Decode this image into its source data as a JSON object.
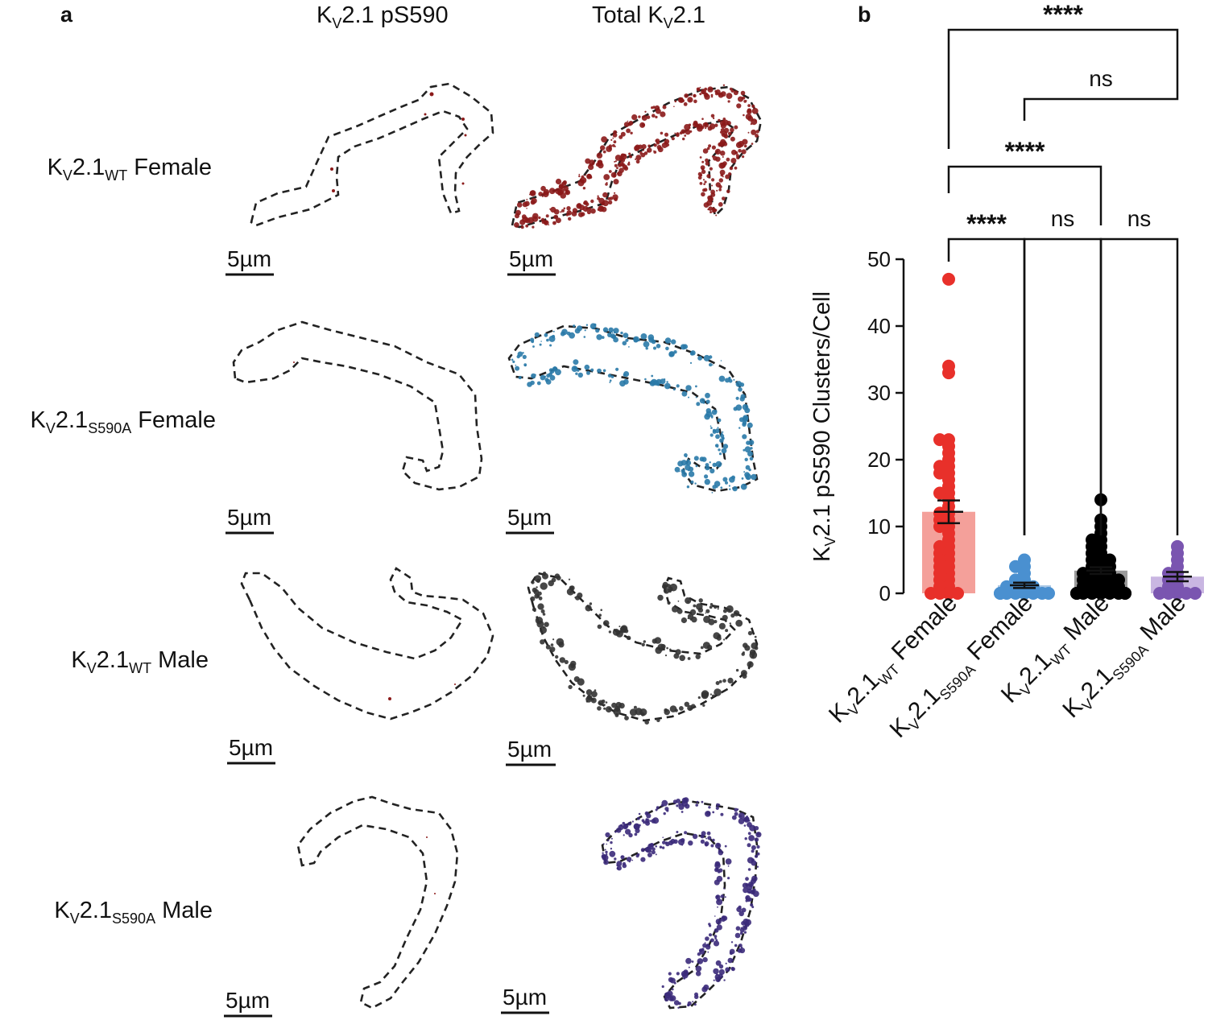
{
  "panel_a": {
    "letter": "a",
    "col_headers": [
      {
        "k": "K",
        "sub": "V",
        "rest": "2.1 pS590"
      },
      {
        "k": "Total K",
        "sub": "V",
        "rest": "2.1"
      }
    ],
    "rows": [
      {
        "k": "K",
        "v": "V",
        "base": "2.1",
        "sub": "WT",
        "sex": " Female",
        "color": "#8b1a1a"
      },
      {
        "k": "K",
        "v": "V",
        "base": "2.1",
        "sub": "S590A",
        "sex": " Female",
        "color": "#2a7aa8"
      },
      {
        "k": "K",
        "v": "V",
        "base": "2.1",
        "sub": "WT",
        "sex": " Male",
        "color": "#333333"
      },
      {
        "k": "K",
        "v": "V",
        "base": "2.1",
        "sub": "S590A",
        "sex": " Male",
        "color": "#3b2a7a"
      }
    ],
    "scale_bar_label": "5µm"
  },
  "panel_b": {
    "letter": "b",
    "chart_data": {
      "type": "bar",
      "ylabel_parts": {
        "k": "K",
        "sub": "V",
        "rest": "2.1 pS590 Clusters/Cell"
      },
      "ylim": [
        0,
        50
      ],
      "yticks": [
        "0",
        "10",
        "20",
        "30",
        "40",
        "50"
      ],
      "groups": [
        {
          "label_k": "K",
          "label_v": "V",
          "label_base": "2.1",
          "label_sub": "WT",
          "label_sex": " Female",
          "mean": 12.2,
          "sem": 1.7,
          "bar_color": "#f4a09a",
          "point_color": "#e8302a",
          "points": [
            47,
            34,
            33,
            23,
            23,
            22,
            21,
            20,
            19,
            19,
            18,
            18,
            17,
            16,
            15,
            15,
            14,
            13,
            12,
            12,
            11,
            11,
            10,
            10,
            9,
            8,
            7,
            7,
            6,
            6,
            5,
            5,
            4,
            4,
            3,
            3,
            2,
            2,
            1,
            1,
            0,
            0,
            0,
            0
          ]
        },
        {
          "label_k": "K",
          "label_v": "V",
          "label_base": "2.1",
          "label_sub": "S590A",
          "label_sex": " Female",
          "mean": 1.2,
          "sem": 0.4,
          "bar_color": "#aac8e6",
          "point_color": "#4a90d0",
          "points": [
            5,
            4,
            4,
            3,
            2,
            2,
            1,
            1,
            1,
            1,
            0,
            0,
            0,
            0,
            0,
            0,
            0,
            0
          ]
        },
        {
          "label_k": "K",
          "label_v": "V",
          "label_base": "2.1",
          "label_sub": "WT",
          "label_sex": " Male",
          "mean": 3.4,
          "sem": 0.5,
          "bar_color": "#9a9a9a",
          "point_color": "#000000",
          "points": [
            14,
            11,
            10,
            9,
            8,
            8,
            7,
            7,
            6,
            6,
            5,
            5,
            5,
            4,
            4,
            4,
            3,
            3,
            3,
            3,
            2,
            2,
            2,
            2,
            2,
            1,
            1,
            1,
            1,
            1,
            0,
            0,
            0,
            0,
            0,
            0,
            0,
            0,
            0,
            0
          ]
        },
        {
          "label_k": "K",
          "label_v": "V",
          "label_base": "2.1",
          "label_sub": "S590A",
          "label_sex": " Male",
          "mean": 2.5,
          "sem": 0.7,
          "bar_color": "#c9b6e2",
          "point_color": "#7a55b0",
          "points": [
            7,
            6,
            5,
            4,
            3,
            3,
            2,
            2,
            1,
            1,
            0,
            0,
            0,
            0,
            0
          ]
        }
      ],
      "comparisons": [
        {
          "from": 0,
          "to": 3,
          "label": "****"
        },
        {
          "from": 1,
          "to": 3,
          "label": "ns"
        },
        {
          "from": 0,
          "to": 2,
          "label": "****"
        },
        {
          "from": 0,
          "to": 1,
          "label": "****"
        },
        {
          "from": 1,
          "to": 2,
          "label": "ns"
        },
        {
          "from": 2,
          "to": 3,
          "label": "ns"
        }
      ]
    }
  }
}
